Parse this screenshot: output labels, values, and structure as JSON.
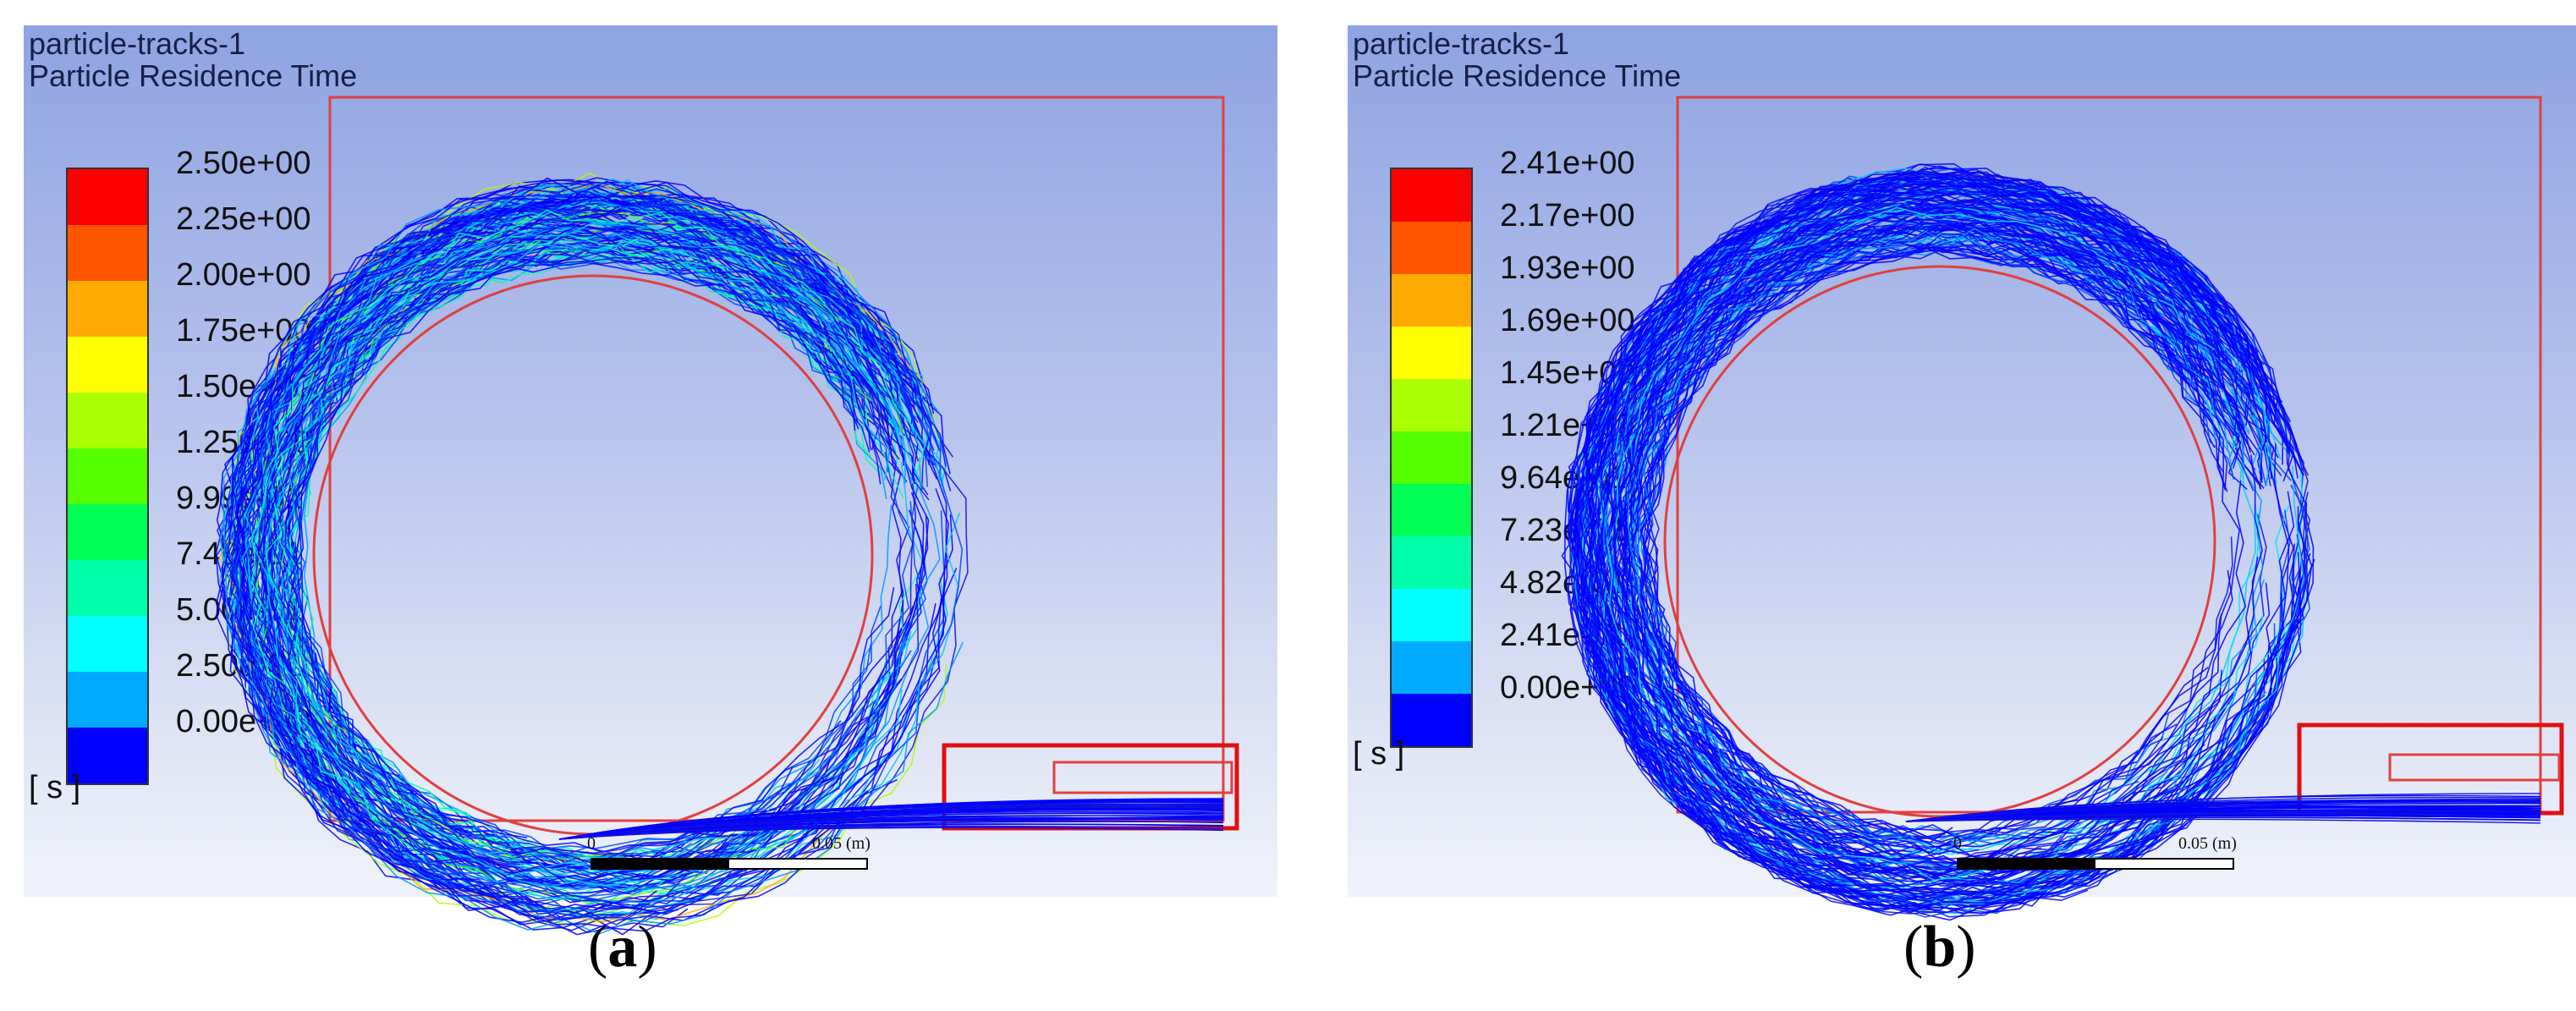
{
  "panels": [
    {
      "title_line1": "particle-tracks-1",
      "title_line2": "Particle Residence Time",
      "legend": {
        "labels": [
          "2.50e+00",
          "2.25e+00",
          "2.00e+00",
          "1.75e+00",
          "1.50e+00",
          "1.25e+00",
          "9.99e-01",
          "7.49e-01",
          "5.00e-01",
          "2.50e-01",
          "0.00e+00"
        ],
        "unit": "[ s ]",
        "colors": [
          "#ff0000",
          "#ff5500",
          "#ffaa00",
          "#ffff00",
          "#aaff00",
          "#55ff00",
          "#00ff55",
          "#00ffaa",
          "#00ffff",
          "#00aaff",
          "#0000ff"
        ]
      },
      "scale": {
        "start": "0",
        "end": "0.05 (m)"
      },
      "caption": {
        "open": "(",
        "letter": "a",
        "close": ")"
      }
    },
    {
      "title_line1": "particle-tracks-1",
      "title_line2": "Particle Residence Time",
      "legend": {
        "labels": [
          "2.41e+00",
          "2.17e+00",
          "1.93e+00",
          "1.69e+00",
          "1.45e+00",
          "1.21e+00",
          "9.64e-01",
          "7.23e-01",
          "4.82e-01",
          "2.41e-01",
          "0.00e+00"
        ],
        "unit": "[ s ]",
        "colors": [
          "#ff0000",
          "#ff5500",
          "#ffaa00",
          "#ffff00",
          "#aaff00",
          "#55ff00",
          "#00ff55",
          "#00ffaa",
          "#00ffff",
          "#00aaff",
          "#0000ff"
        ]
      },
      "scale": {
        "start": "0",
        "end": "0.05 (m)"
      },
      "caption": {
        "open": "(",
        "letter": "b",
        "close": ")"
      }
    }
  ]
}
